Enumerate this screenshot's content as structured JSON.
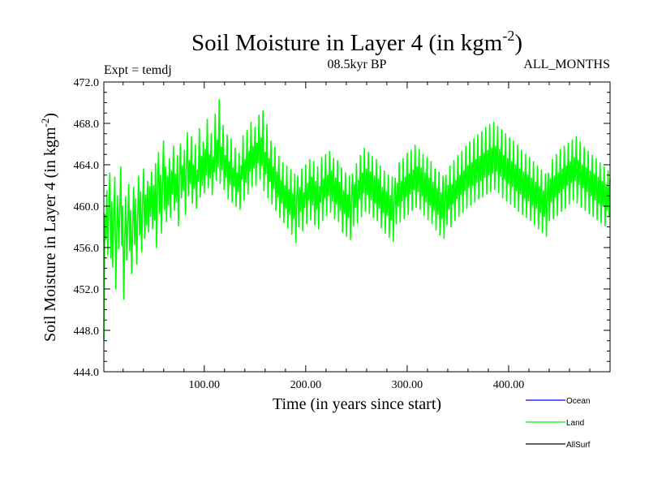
{
  "chart_data": {
    "type": "line",
    "title": "Soil Moisture in Layer 4 (in kgm",
    "title_sup": "-2",
    "title_close": ")",
    "subtitle_left": "Expt = temdj",
    "subtitle_center": "08.5kyr BP",
    "subtitle_right": "ALL_MONTHS",
    "xlabel": "Time (in years since start)",
    "ylabel": "Soil Moisture in Layer 4 (in kgm",
    "ylabel_sup": "-2",
    "ylabel_close": ")",
    "xlim": [
      1,
      500
    ],
    "ylim": [
      444.0,
      472.0
    ],
    "x_ticks": [
      100,
      200,
      300,
      400
    ],
    "x_tick_labels": [
      "100.00",
      "200.00",
      "300.00",
      "400.00"
    ],
    "y_ticks": [
      444,
      448,
      452,
      456,
      460,
      464,
      468,
      472
    ],
    "y_tick_labels": [
      "444.0",
      "448.0",
      "452.0",
      "456.0",
      "460.0",
      "464.0",
      "468.0",
      "472.0"
    ],
    "legend": [
      {
        "name": "Ocean",
        "color": "#0000ff"
      },
      {
        "name": "Land",
        "color": "#00ff00"
      },
      {
        "name": "AllSurf",
        "color": "#000000"
      }
    ],
    "series": [
      {
        "name": "Land",
        "color": "#00ff00",
        "x_start": 1,
        "x_end": 500,
        "values": [
          447.0,
          459.2,
          456.8,
          461.5,
          455.3,
          459.8,
          463.2,
          455.0,
          460.4,
          454.1,
          458.9,
          462.8,
          452.0,
          457.6,
          461.0,
          455.9,
          459.4,
          463.8,
          456.2,
          460.0,
          451.0,
          456.5,
          460.9,
          454.8,
          458.3,
          462.1,
          455.7,
          459.6,
          453.5,
          458.0,
          461.8,
          456.3,
          460.7,
          454.4,
          459.0,
          462.9,
          457.2,
          461.4,
          455.6,
          460.2,
          463.6,
          456.9,
          461.1,
          458.2,
          462.4,
          457.5,
          461.9,
          459.0,
          463.3,
          457.8,
          462.0,
          458.7,
          464.1,
          456.0,
          461.6,
          465.2,
          459.3,
          463.0,
          457.4,
          462.6,
          466.3,
          459.7,
          463.8,
          458.5,
          462.9,
          460.1,
          464.6,
          458.9,
          463.4,
          461.2,
          465.8,
          459.6,
          463.1,
          460.4,
          464.9,
          458.1,
          462.7,
          466.0,
          460.8,
          463.9,
          461.5,
          465.4,
          459.2,
          463.6,
          467.1,
          461.0,
          464.4,
          462.2,
          466.7,
          460.3,
          464.0,
          461.7,
          465.9,
          459.8,
          463.5,
          462.4,
          467.5,
          460.9,
          464.8,
          462.0,
          466.2,
          461.3,
          465.5,
          463.0,
          468.4,
          461.8,
          465.0,
          462.7,
          467.0,
          461.1,
          464.7,
          463.3,
          468.9,
          462.5,
          466.4,
          463.8,
          470.3,
          462.2,
          465.7,
          463.5,
          467.8,
          461.6,
          464.9,
          462.8,
          466.9,
          460.7,
          464.3,
          462.1,
          466.5,
          460.4,
          463.7,
          461.9,
          465.6,
          460.0,
          463.2,
          461.4,
          465.1,
          459.7,
          463.9,
          462.6,
          466.8,
          460.6,
          464.5,
          462.3,
          467.3,
          461.2,
          465.3,
          463.4,
          468.1,
          461.9,
          465.8,
          463.7,
          467.6,
          462.0,
          466.1,
          464.2,
          468.8,
          462.6,
          466.6,
          463.9,
          469.2,
          461.5,
          465.2,
          463.1,
          467.9,
          460.8,
          464.6,
          462.4,
          466.3,
          460.2,
          463.8,
          461.7,
          465.7,
          459.6,
          463.3,
          460.9,
          464.8,
          458.9,
          462.5,
          460.3,
          464.2,
          458.4,
          462.0,
          459.8,
          463.9,
          457.9,
          461.6,
          459.2,
          463.5,
          457.3,
          461.2,
          458.8,
          463.1,
          456.5,
          460.7,
          462.9,
          458.0,
          461.8,
          459.5,
          463.6,
          457.6,
          461.3,
          459.9,
          464.0,
          458.3,
          462.2,
          460.6,
          464.5,
          458.7,
          462.8,
          460.1,
          464.3,
          458.2,
          462.4,
          459.7,
          463.8,
          457.8,
          461.9,
          460.4,
          464.7,
          458.6,
          462.6,
          460.8,
          465.0,
          459.1,
          463.0,
          461.0,
          465.3,
          459.4,
          463.4,
          460.5,
          464.6,
          458.8,
          462.7,
          460.2,
          464.4,
          458.5,
          462.3,
          459.6,
          463.7,
          457.5,
          461.5,
          459.3,
          463.2,
          457.1,
          461.1,
          458.9,
          462.9,
          456.8,
          460.9,
          463.1,
          458.1,
          462.1,
          459.9,
          464.1,
          458.4,
          462.5,
          460.7,
          464.9,
          459.0,
          463.2,
          461.3,
          465.6,
          459.5,
          463.6,
          461.1,
          465.2,
          459.3,
          463.3,
          460.6,
          464.8,
          458.9,
          462.9,
          460.3,
          464.5,
          458.6,
          462.6,
          459.8,
          463.9,
          457.9,
          461.8,
          459.4,
          463.4,
          457.4,
          461.4,
          459.1,
          463.0,
          457.0,
          461.0,
          458.7,
          462.8,
          456.6,
          460.6,
          462.7,
          458.3,
          462.2,
          460.0,
          464.2,
          458.5,
          462.4,
          460.5,
          464.6,
          458.8,
          462.8,
          460.9,
          465.1,
          459.2,
          463.1,
          461.2,
          465.4,
          459.6,
          463.5,
          461.6,
          465.9,
          459.9,
          463.8,
          461.4,
          465.5,
          459.7,
          463.7,
          461.0,
          465.0,
          459.1,
          463.2,
          460.4,
          464.7,
          458.7,
          462.7,
          460.1,
          464.3,
          458.3,
          462.3,
          459.6,
          463.6,
          457.7,
          461.7,
          459.2,
          463.3,
          457.2,
          461.3,
          458.8,
          462.9,
          456.9,
          460.8,
          463.0,
          458.2,
          462.0,
          459.7,
          463.9,
          458.0,
          462.1,
          460.2,
          464.4,
          458.6,
          462.5,
          460.7,
          464.9,
          459.0,
          463.0,
          461.1,
          465.3,
          459.4,
          463.4,
          461.5,
          465.8,
          459.8,
          463.9,
          461.8,
          466.2,
          460.1,
          464.2,
          462.0,
          466.5,
          460.4,
          464.5,
          462.3,
          466.9,
          460.7,
          464.8,
          462.5,
          467.2,
          460.9,
          465.1,
          462.8,
          467.6,
          461.2,
          465.4,
          463.0,
          467.9,
          461.4,
          465.6,
          463.2,
          468.1,
          461.6,
          465.8,
          463.4,
          467.7,
          461.3,
          465.5,
          462.9,
          467.4,
          460.8,
          464.9,
          462.6,
          467.0,
          460.5,
          464.6,
          462.2,
          466.6,
          460.2,
          464.3,
          461.9,
          466.3,
          459.9,
          464.0,
          461.5,
          465.9,
          459.5,
          463.6,
          461.2,
          465.4,
          459.2,
          463.3,
          460.8,
          465.0,
          458.9,
          463.0,
          460.5,
          464.7,
          458.6,
          462.7,
          460.1,
          464.3,
          458.2,
          462.3,
          459.8,
          463.9,
          457.8,
          461.9,
          459.4,
          463.5,
          457.5,
          461.5,
          459.0,
          463.1,
          457.1,
          461.2,
          463.2,
          458.6,
          462.6,
          460.4,
          464.5,
          458.8,
          462.9,
          460.9,
          465.0,
          459.1,
          463.2,
          461.3,
          465.5,
          459.5,
          463.6,
          461.7,
          465.8,
          459.8,
          463.9,
          462.0,
          466.1,
          460.2,
          464.3,
          462.3,
          466.4,
          460.6,
          464.7,
          462.5,
          466.7,
          460.3,
          464.4,
          462.1,
          466.2,
          459.9,
          464.0,
          461.8,
          465.7,
          459.6,
          463.7,
          461.4,
          465.3,
          459.3,
          463.4,
          461.0,
          464.9,
          459.0,
          463.1,
          460.6,
          464.6,
          458.7,
          462.8,
          460.3,
          464.2,
          458.4,
          462.4,
          460.0,
          463.8,
          458.1,
          462.1,
          459.6,
          463.4,
          459.0,
          462.7
        ]
      }
    ]
  }
}
